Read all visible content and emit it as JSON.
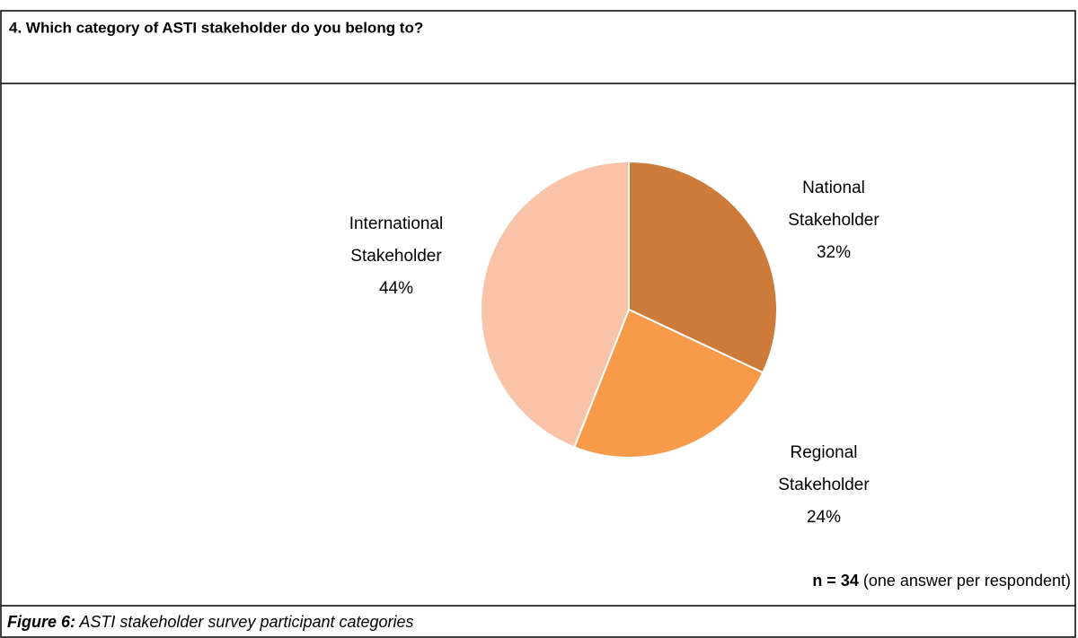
{
  "chart_data": {
    "type": "pie",
    "title": "4. Which category of ASTI stakeholder do you belong to?",
    "categories": [
      "National Stakeholder",
      "Regional Stakeholder",
      "International Stakeholder"
    ],
    "values": [
      32,
      24,
      44
    ],
    "value_labels": [
      "32%",
      "24%",
      "44%"
    ],
    "colors": [
      "#cc7b3a",
      "#f79a4a",
      "#f8c3a8"
    ],
    "note": {
      "bold": "n = 34",
      "text": "(one answer per respondent)"
    },
    "caption": {
      "bold": "Figure 6:",
      "text": "ASTI stakeholder survey participant categories"
    }
  }
}
